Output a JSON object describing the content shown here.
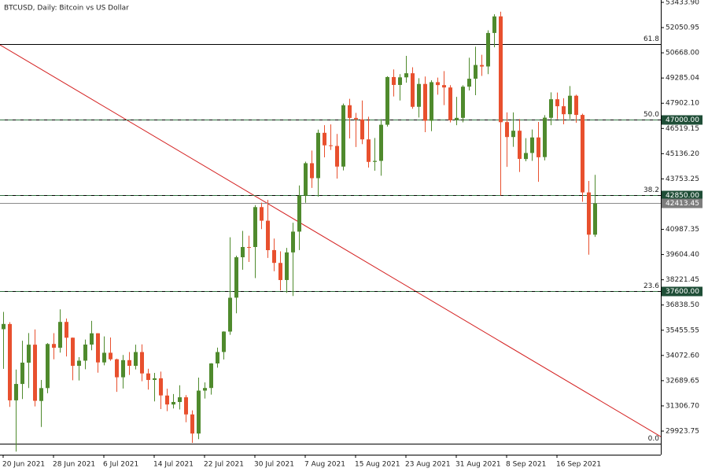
{
  "chart_data": {
    "type": "candlestick",
    "title": "BTCUSD, Daily:  Bitcoin vs US Dollar",
    "categories": [
      "20 Jun 2021",
      null,
      null,
      null,
      null,
      null,
      null,
      null,
      "28 Jun 2021",
      null,
      null,
      null,
      null,
      null,
      null,
      null,
      "6 Jul 2021",
      null,
      null,
      null,
      null,
      null,
      null,
      null,
      "14 Jul 2021",
      null,
      null,
      null,
      null,
      null,
      null,
      null,
      "22 Jul 2021",
      null,
      null,
      null,
      null,
      null,
      null,
      null,
      "30 Jul 2021",
      null,
      null,
      null,
      null,
      null,
      null,
      null,
      "7 Aug 2021",
      null,
      null,
      null,
      null,
      null,
      null,
      null,
      "15 Aug 2021",
      null,
      null,
      null,
      null,
      null,
      null,
      null,
      "23 Aug 2021",
      null,
      null,
      null,
      null,
      null,
      null,
      null,
      "31 Aug 2021",
      null,
      null,
      null,
      null,
      null,
      null,
      null,
      "8 Sep 2021",
      null,
      null,
      null,
      null,
      null,
      null,
      null,
      "16 Sep 2021",
      null,
      null,
      null,
      null,
      null,
      null
    ],
    "open": [
      35513,
      35796,
      31610,
      32509,
      33675,
      34663,
      31576,
      32283,
      34702,
      34494,
      35911,
      35045,
      33502,
      33786,
      34668,
      35288,
      33690,
      34220,
      33862,
      32875,
      33815,
      33502,
      34259,
      33086,
      32729,
      32820,
      31874,
      31383,
      31520,
      31778,
      30839,
      29790,
      32144,
      32287,
      33634,
      34261,
      35381,
      37241,
      39456,
      40019,
      40018,
      42206,
      41461,
      39850,
      39146,
      38208,
      39723,
      40862,
      42836,
      44614,
      43794,
      46280,
      45595,
      45560,
      44428,
      47794,
      47097,
      47018,
      45920,
      44687,
      44741,
      46723,
      49339,
      48906,
      49322,
      49546,
      47706,
      48960,
      46942,
      49058,
      48897,
      48767,
      46970,
      47100,
      48810,
      49246,
      49998,
      49918,
      51756,
      52666,
      46868,
      46048,
      46395,
      44842,
      45174,
      46026,
      44949,
      47103,
      48121,
      47737,
      47300,
      48314,
      47261,
      43012,
      40694
    ],
    "high": [
      36457,
      35900,
      33298,
      34881,
      35298,
      35500,
      32730,
      34749,
      35297,
      36600,
      36100,
      35057,
      33977,
      34945,
      35967,
      35293,
      35118,
      35059,
      33900,
      34100,
      34262,
      34666,
      34679,
      33340,
      33114,
      33185,
      32249,
      31955,
      32435,
      31899,
      31063,
      32858,
      32591,
      33650,
      34500,
      35398,
      40550,
      39542,
      40900,
      40640,
      42316,
      42448,
      42599,
      40480,
      39780,
      39969,
      41350,
      43392,
      44700,
      45310,
      46454,
      46700,
      46743,
      46218,
      47886,
      48144,
      47372,
      48053,
      47160,
      46000,
      47033,
      49382,
      49757,
      49500,
      50500,
      49875,
      49277,
      49368,
      49165,
      49309,
      49667,
      48896,
      48250,
      48888,
      50400,
      51000,
      50558,
      51900,
      52780,
      52920,
      47399,
      47400,
      47031,
      45987,
      46460,
      46876,
      47250,
      48500,
      48490,
      48177,
      48843,
      48372,
      47328,
      43639,
      43975
    ],
    "low": [
      33336,
      31251,
      28805,
      31683,
      32286,
      31275,
      30151,
      32000,
      33862,
      34225,
      34017,
      32711,
      32699,
      33316,
      34357,
      33125,
      33532,
      33777,
      32077,
      32261,
      33004,
      33306,
      32658,
      32202,
      31550,
      31133,
      31020,
      31164,
      31108,
      30407,
      29278,
      29482,
      31708,
      31925,
      33401,
      33851,
      35205,
      36383,
      38772,
      39200,
      38313,
      41000,
      39422,
      38690,
      37642,
      37508,
      37332,
      39853,
      42446,
      43261,
      42779,
      44936,
      45341,
      43770,
      44218,
      45971,
      45500,
      45660,
      44376,
      44200,
      43927,
      46622,
      48273,
      48050,
      49029,
      47600,
      47122,
      46315,
      46371,
      48370,
      47801,
      46850,
      46700,
      46853,
      48600,
      48346,
      49400,
      49500,
      50969,
      42843,
      44412,
      45513,
      44132,
      44722,
      44742,
      43591,
      44770,
      46700,
      47035,
      46750,
      47033,
      46829,
      42500,
      39600,
      40574
    ],
    "close": [
      35798,
      31610,
      32509,
      33678,
      34663,
      31584,
      32283,
      34700,
      34494,
      35911,
      35045,
      33504,
      33786,
      34669,
      35287,
      33690,
      34220,
      33862,
      32875,
      33815,
      33502,
      34259,
      33086,
      32729,
      32820,
      31880,
      31383,
      31520,
      31778,
      30839,
      29790,
      32144,
      32287,
      33634,
      34258,
      35381,
      37237,
      39457,
      40019,
      40016,
      42206,
      41461,
      39845,
      39147,
      38207,
      39723,
      40862,
      42836,
      44614,
      43792,
      46280,
      45594,
      45560,
      44428,
      47793,
      47097,
      47018,
      45920,
      44686,
      44741,
      46723,
      49339,
      48906,
      49322,
      49546,
      47706,
      48960,
      46942,
      49058,
      48897,
      48767,
      46970,
      47100,
      48810,
      49246,
      49999,
      49915,
      51756,
      52663,
      46863,
      46048,
      46395,
      44851,
      45174,
      46026,
      44940,
      47111,
      48122,
      47737,
      47300,
      48314,
      47261,
      43012,
      40694,
      42413
    ],
    "up_color": "#4f8a2d",
    "down_color": "#e8502e",
    "ylim": [
      28630,
      53563
    ],
    "yticks": [
      {
        "value": 53433.9,
        "label": "53433.90"
      },
      52050.95,
      {
        "value": 50668,
        "label": "50668.00"
      },
      49285.04,
      {
        "value": 47902.1,
        "label": "47902.10"
      },
      46519.15,
      {
        "value": 45136.2,
        "label": "45136.20"
      },
      43753.25,
      40987.35,
      {
        "value": 39604.4,
        "label": "39604.40"
      },
      38221.45,
      {
        "value": 36838.5,
        "label": "36838.50"
      },
      35455.55,
      {
        "value": 34072.6,
        "label": "34072.60"
      },
      32689.65,
      {
        "value": 31306.7,
        "label": "31306.70"
      },
      29923.75
    ],
    "levels": [
      {
        "name": "61.8",
        "value": 51150
      },
      {
        "name": "50.0",
        "value": 47000,
        "tag": "47000.00"
      },
      {
        "name": "38.2",
        "value": 42850,
        "tag": "42850.00"
      },
      {
        "name": "23.6",
        "value": 37600,
        "tag": "37600.00"
      },
      {
        "name": "0.0",
        "value": 29250
      }
    ],
    "current_price": 42413.45,
    "trendline": {
      "start": 51104,
      "end": 29621,
      "color": "#d42020"
    }
  }
}
